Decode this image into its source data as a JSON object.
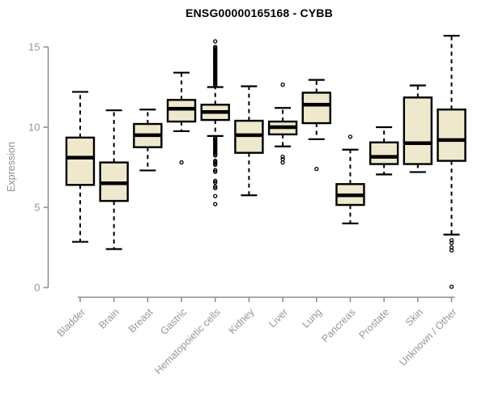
{
  "header": {
    "title": "ENSG00000165168 - CYBB"
  },
  "colors": {
    "box_fill": "#EEE8CD",
    "box_stroke": "#000000",
    "median": "#000000",
    "whisker": "#000000",
    "axis": "#8c8c8c",
    "tick_label": "#969696",
    "title": "#000000",
    "background": "#ffffff"
  },
  "chart_data": {
    "type": "boxplot",
    "title": "ENSG00000165168 - CYBB",
    "xlabel": "",
    "ylabel": "Expression",
    "ylim": [
      0,
      15.8
    ],
    "yticks": [
      0,
      5,
      10,
      15
    ],
    "grid": false,
    "legend": "none",
    "categories": [
      "Bladder",
      "Brain",
      "Breast",
      "Gastric",
      "Hematopoietic cells",
      "Kidney",
      "Liver",
      "Lung",
      "Pancreas",
      "Prostate",
      "Skin",
      "Unknown / Other"
    ],
    "series": [
      {
        "name": "Bladder",
        "whisker_low": 2.85,
        "q1": 6.4,
        "median": 8.1,
        "q3": 9.35,
        "whisker_high": 12.2,
        "outliers": []
      },
      {
        "name": "Brain",
        "whisker_low": 2.4,
        "q1": 5.4,
        "median": 6.5,
        "q3": 7.8,
        "whisker_high": 11.05,
        "outliers": []
      },
      {
        "name": "Breast",
        "whisker_low": 7.3,
        "q1": 8.75,
        "median": 9.5,
        "q3": 10.2,
        "whisker_high": 11.1,
        "outliers": []
      },
      {
        "name": "Gastric",
        "whisker_low": 9.75,
        "q1": 10.35,
        "median": 11.15,
        "q3": 11.7,
        "whisker_high": 13.4,
        "outliers": [
          7.8
        ]
      },
      {
        "name": "Hematopoietic cells",
        "whisker_low": 9.45,
        "q1": 10.45,
        "median": 10.95,
        "q3": 11.4,
        "whisker_high": 12.5,
        "outliers": [
          15.35,
          15.0,
          14.92,
          14.84,
          14.76,
          14.68,
          14.6,
          14.52,
          14.44,
          14.36,
          14.28,
          14.2,
          14.12,
          14.04,
          13.96,
          13.88,
          13.8,
          13.72,
          13.64,
          13.56,
          13.48,
          13.4,
          13.32,
          13.24,
          13.16,
          13.08,
          13.0,
          12.92,
          12.84,
          12.76,
          12.68,
          12.6,
          9.35,
          9.28,
          9.2,
          9.12,
          9.04,
          8.96,
          8.88,
          8.8,
          8.72,
          8.64,
          8.56,
          8.48,
          8.4,
          8.32,
          8.24,
          7.9,
          7.82,
          7.74,
          7.66,
          7.32,
          7.22,
          6.65,
          6.55,
          6.3,
          6.2,
          5.7,
          5.2
        ]
      },
      {
        "name": "Kidney",
        "whisker_low": 5.75,
        "q1": 8.4,
        "median": 9.5,
        "q3": 10.4,
        "whisker_high": 12.55,
        "outliers": []
      },
      {
        "name": "Liver",
        "whisker_low": 8.8,
        "q1": 9.55,
        "median": 10.0,
        "q3": 10.35,
        "whisker_high": 11.2,
        "outliers": [
          12.65,
          8.15,
          8.0,
          7.8
        ]
      },
      {
        "name": "Lung",
        "whisker_low": 9.25,
        "q1": 10.25,
        "median": 11.4,
        "q3": 12.15,
        "whisker_high": 12.95,
        "outliers": [
          7.4
        ]
      },
      {
        "name": "Pancreas",
        "whisker_low": 4.0,
        "q1": 5.15,
        "median": 5.75,
        "q3": 6.45,
        "whisker_high": 8.6,
        "outliers": [
          9.4
        ]
      },
      {
        "name": "Prostate",
        "whisker_low": 7.05,
        "q1": 7.7,
        "median": 8.15,
        "q3": 9.05,
        "whisker_high": 10.0,
        "outliers": []
      },
      {
        "name": "Skin",
        "whisker_low": 7.2,
        "q1": 7.7,
        "median": 9.0,
        "q3": 11.85,
        "whisker_high": 12.6,
        "outliers": []
      },
      {
        "name": "Unknown / Other",
        "whisker_low": 3.3,
        "q1": 7.9,
        "median": 9.2,
        "q3": 11.1,
        "whisker_high": 15.7,
        "outliers": [
          2.95,
          2.78,
          2.5,
          2.32,
          0.05
        ]
      }
    ]
  }
}
